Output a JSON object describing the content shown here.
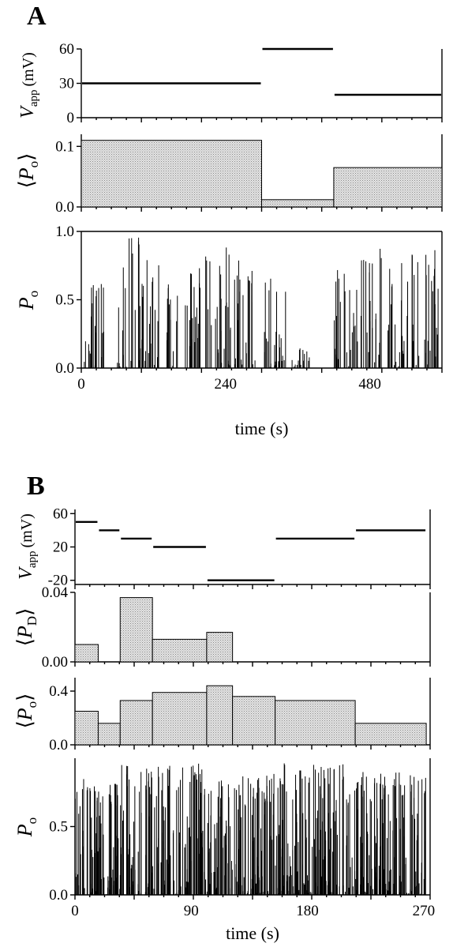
{
  "figure": {
    "panels": [
      "A",
      "B"
    ]
  },
  "chart_data": [
    {
      "panel": "A",
      "subplot": "Vapp",
      "type": "line",
      "ylabel_main": "V",
      "ylabel_sub": "app",
      "ylabel_unit": "(mV)",
      "xlim": [
        0,
        600
      ],
      "ylim": [
        0,
        60
      ],
      "yticks": [
        0,
        30,
        60
      ],
      "segments": [
        {
          "x0": 0,
          "x1": 300,
          "y": 30
        },
        {
          "x0": 300,
          "x1": 420,
          "y": 60
        },
        {
          "x0": 420,
          "x1": 600,
          "y": 20
        }
      ]
    },
    {
      "panel": "A",
      "subplot": "meanPo",
      "type": "bar",
      "ylabel_main": "P",
      "ylabel_sub": "o",
      "xlim": [
        0,
        600
      ],
      "ylim": [
        0,
        0.12
      ],
      "yticks": [
        0.0,
        0.1
      ],
      "ytick_labels": [
        "0.0",
        "0.1"
      ],
      "bins": [
        {
          "x0": 0,
          "x1": 300,
          "value": 0.11
        },
        {
          "x0": 300,
          "x1": 420,
          "value": 0.012
        },
        {
          "x0": 420,
          "x1": 600,
          "value": 0.065
        }
      ]
    },
    {
      "panel": "A",
      "subplot": "Po",
      "type": "bar",
      "ylabel_main": "P",
      "ylabel_sub": "o",
      "xlabel": "time (s)",
      "xlim": [
        0,
        600
      ],
      "ylim": [
        0,
        1.0
      ],
      "yticks": [
        0.0,
        0.5,
        1.0
      ],
      "ytick_labels": [
        "0.0",
        "0.5",
        "1.0"
      ],
      "xticks": [
        0,
        240,
        480
      ],
      "xtick_labels": [
        "0",
        "240",
        "480"
      ],
      "bursts": [
        {
          "x0": 5,
          "x1": 40,
          "peak": 0.7
        },
        {
          "x0": 60,
          "x1": 100,
          "peak": 0.97
        },
        {
          "x0": 100,
          "x1": 130,
          "peak": 0.8
        },
        {
          "x0": 140,
          "x1": 160,
          "peak": 0.62
        },
        {
          "x0": 170,
          "x1": 200,
          "peak": 0.75
        },
        {
          "x0": 205,
          "x1": 250,
          "peak": 0.9
        },
        {
          "x0": 255,
          "x1": 290,
          "peak": 0.88
        },
        {
          "x0": 300,
          "x1": 340,
          "peak": 0.72
        },
        {
          "x0": 350,
          "x1": 380,
          "peak": 0.15
        },
        {
          "x0": 420,
          "x1": 460,
          "peak": 0.72
        },
        {
          "x0": 465,
          "x1": 500,
          "peak": 0.93
        },
        {
          "x0": 510,
          "x1": 545,
          "peak": 0.78
        },
        {
          "x0": 550,
          "x1": 595,
          "peak": 0.9
        }
      ]
    },
    {
      "panel": "B",
      "subplot": "Vapp",
      "type": "line",
      "ylabel_main": "V",
      "ylabel_sub": "app",
      "ylabel_unit": "(mV)",
      "xlim": [
        0,
        275
      ],
      "ylim": [
        -25,
        65
      ],
      "yticks": [
        -20,
        20,
        60
      ],
      "segments": [
        {
          "x0": 0,
          "x1": 18,
          "y": 50
        },
        {
          "x0": 18,
          "x1": 35,
          "y": 40
        },
        {
          "x0": 35,
          "x1": 60,
          "y": 30
        },
        {
          "x0": 60,
          "x1": 102,
          "y": 20
        },
        {
          "x0": 102,
          "x1": 155,
          "y": -20
        },
        {
          "x0": 155,
          "x1": 217,
          "y": 30
        },
        {
          "x0": 217,
          "x1": 272,
          "y": 40
        }
      ]
    },
    {
      "panel": "B",
      "subplot": "meanPD",
      "type": "bar",
      "ylabel_main": "P",
      "ylabel_sub": "D",
      "xlim": [
        0,
        275
      ],
      "ylim": [
        0,
        0.04
      ],
      "yticks": [
        0.0,
        0.04
      ],
      "ytick_labels": [
        "0.00",
        "0.04"
      ],
      "bins": [
        {
          "x0": 0,
          "x1": 18,
          "value": 0.01
        },
        {
          "x0": 35,
          "x1": 60,
          "value": 0.037
        },
        {
          "x0": 60,
          "x1": 102,
          "value": 0.013
        },
        {
          "x0": 102,
          "x1": 122,
          "value": 0.017
        }
      ]
    },
    {
      "panel": "B",
      "subplot": "meanPo",
      "type": "bar",
      "ylabel_main": "P",
      "ylabel_sub": "o",
      "xlim": [
        0,
        275
      ],
      "ylim": [
        0,
        0.5
      ],
      "yticks": [
        0.0,
        0.4
      ],
      "ytick_labels": [
        "0.0",
        "0.4"
      ],
      "bins": [
        {
          "x0": 0,
          "x1": 18,
          "value": 0.25
        },
        {
          "x0": 18,
          "x1": 35,
          "value": 0.16
        },
        {
          "x0": 35,
          "x1": 60,
          "value": 0.33
        },
        {
          "x0": 60,
          "x1": 102,
          "value": 0.39
        },
        {
          "x0": 102,
          "x1": 122,
          "value": 0.44
        },
        {
          "x0": 122,
          "x1": 155,
          "value": 0.36
        },
        {
          "x0": 155,
          "x1": 217,
          "value": 0.33
        },
        {
          "x0": 217,
          "x1": 272,
          "value": 0.16
        }
      ]
    },
    {
      "panel": "B",
      "subplot": "Po",
      "type": "bar",
      "ylabel_main": "P",
      "ylabel_sub": "o",
      "xlabel": "time (s)",
      "xlim": [
        0,
        275
      ],
      "ylim": [
        0,
        1.0
      ],
      "yticks": [
        0.0,
        0.5
      ],
      "ytick_labels": [
        "0.0",
        "0.5"
      ],
      "xticks": [
        0,
        90,
        180,
        270
      ],
      "xtick_labels": [
        "0",
        "90",
        "180",
        "270"
      ],
      "bursts": [
        {
          "x0": 0,
          "x1": 18,
          "peak": 0.88
        },
        {
          "x0": 18,
          "x1": 35,
          "peak": 0.85
        },
        {
          "x0": 35,
          "x1": 60,
          "peak": 0.95
        },
        {
          "x0": 60,
          "x1": 102,
          "peak": 0.97
        },
        {
          "x0": 102,
          "x1": 122,
          "peak": 0.92
        },
        {
          "x0": 122,
          "x1": 155,
          "peak": 0.9
        },
        {
          "x0": 155,
          "x1": 217,
          "peak": 0.97
        },
        {
          "x0": 217,
          "x1": 272,
          "peak": 0.9
        }
      ]
    }
  ]
}
